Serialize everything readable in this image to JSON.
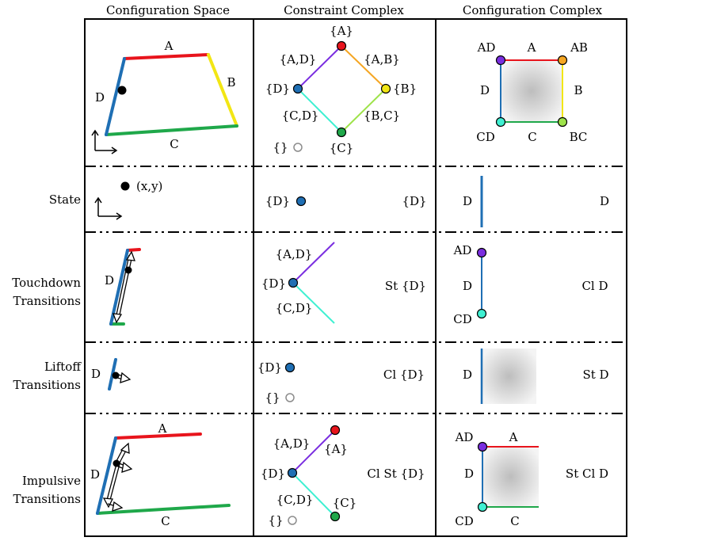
{
  "headers": {
    "config_space": "Configuration Space",
    "constraint_complex": "Constraint Complex",
    "configuration_complex": "Configuration Complex"
  },
  "row_labels": {
    "state": "State",
    "touchdown_1": "Touchdown",
    "touchdown_2": "Transitions",
    "liftoff_1": "Liftoff",
    "liftoff_2": "Transitions",
    "impulsive_1": "Impulsive",
    "impulsive_2": "Transitions"
  },
  "labels": {
    "A": "A",
    "B": "B",
    "C": "C",
    "D": "D",
    "AD": "AD",
    "AB": "AB",
    "BC": "BC",
    "CD": "CD",
    "set_A": "{A}",
    "set_B": "{B}",
    "set_C": "{C}",
    "set_D": "{D}",
    "set_AD": "{A,D}",
    "set_AB": "{A,B}",
    "set_BC": "{B,C}",
    "set_CD": "{C,D}",
    "empty": "{}",
    "xy": "(x,y)",
    "St_set_D": "St {D}",
    "Cl_set_D": "Cl {D}",
    "Cl_St_set_D": "Cl St {D}",
    "Cl_D": "Cl D",
    "St_D": "St D",
    "St_Cl_D": "St Cl D"
  },
  "colors": {
    "A": "#e8141c",
    "B": "#f2e614",
    "C": "#1fa84a",
    "D": "#1f6fb4",
    "AB": "#f5a623",
    "BC": "#9ee34a",
    "CD": "#3ff0d2",
    "AD": "#7a2ee0",
    "grid": "#000000",
    "empty_vertex": "#8c8c8c"
  }
}
